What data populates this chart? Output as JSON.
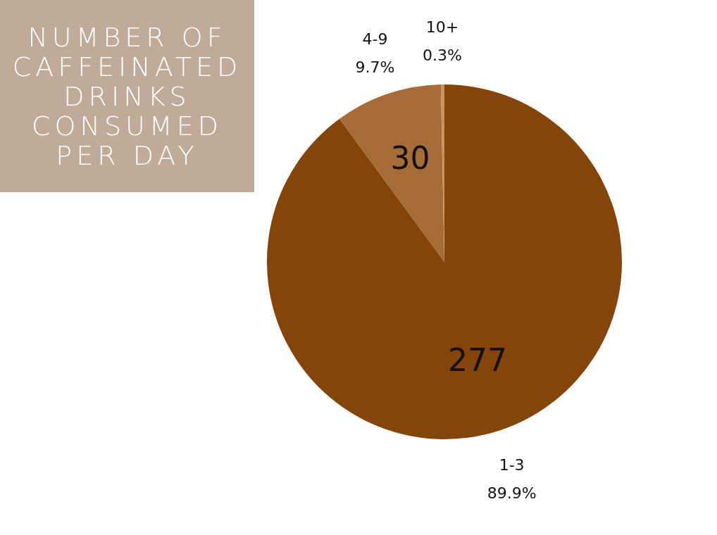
{
  "chart_data": {
    "type": "pie",
    "title": "NUMBER OF CAFFEINATED DRINKS CONSUMED PER DAY",
    "categories": [
      "1-3",
      "4-9",
      "10+"
    ],
    "values": [
      277,
      30,
      1
    ],
    "colors": [
      "#854509",
      "#a56c35",
      "#c4955f"
    ],
    "value_labels": [
      "277",
      "30",
      null
    ],
    "annotations": [
      "89.9%",
      "9.7%",
      "0.3%"
    ],
    "legend": false
  }
}
